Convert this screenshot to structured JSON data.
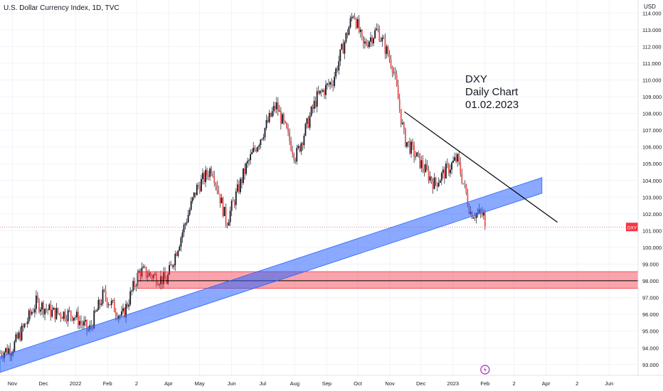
{
  "chart_data": {
    "type": "candlestick",
    "title": "U.S. Dollar Currency Index, 1D, TVC",
    "currency": "USD",
    "annotation": [
      "DXY",
      "Daily Chart",
      "01.02.2023"
    ],
    "y_ticks": [
      "114.000",
      "113.000",
      "112.000",
      "111.000",
      "110.000",
      "109.000",
      "108.000",
      "107.000",
      "106.000",
      "105.000",
      "104.000",
      "103.000",
      "102.000",
      "101.000",
      "100.000",
      "99.000",
      "98.000",
      "97.000",
      "96.000",
      "95.000",
      "94.000",
      "93.000"
    ],
    "x_ticks": [
      "Nov",
      "Dec",
      "2022",
      "Feb",
      "2",
      "Apr",
      "May",
      "Jun",
      "Jul",
      "Aug",
      "Sep",
      "Oct",
      "Nov",
      "Dec",
      "2023",
      "Feb",
      "2",
      "Apr",
      "2",
      "Jun"
    ],
    "ylim": [
      92.5,
      114.3
    ],
    "price_path": [
      {
        "date": "2021-10-20",
        "value": 93.7
      },
      {
        "date": "2021-11-01",
        "value": 94.0
      },
      {
        "date": "2021-11-12",
        "value": 95.2
      },
      {
        "date": "2021-11-24",
        "value": 96.7
      },
      {
        "date": "2021-12-10",
        "value": 96.1
      },
      {
        "date": "2021-12-30",
        "value": 96.0
      },
      {
        "date": "2022-01-14",
        "value": 95.0
      },
      {
        "date": "2022-01-28",
        "value": 97.2
      },
      {
        "date": "2022-02-15",
        "value": 95.8
      },
      {
        "date": "2022-03-04",
        "value": 98.6
      },
      {
        "date": "2022-03-30",
        "value": 98.0
      },
      {
        "date": "2022-04-28",
        "value": 103.5
      },
      {
        "date": "2022-05-13",
        "value": 104.8
      },
      {
        "date": "2022-05-27",
        "value": 101.5
      },
      {
        "date": "2022-06-15",
        "value": 104.8
      },
      {
        "date": "2022-07-14",
        "value": 108.5
      },
      {
        "date": "2022-08-02",
        "value": 105.4
      },
      {
        "date": "2022-08-22",
        "value": 108.9
      },
      {
        "date": "2022-09-07",
        "value": 110.0
      },
      {
        "date": "2022-09-27",
        "value": 114.1
      },
      {
        "date": "2022-10-06",
        "value": 112.0
      },
      {
        "date": "2022-10-20",
        "value": 113.0
      },
      {
        "date": "2022-11-04",
        "value": 110.8
      },
      {
        "date": "2022-11-15",
        "value": 106.5
      },
      {
        "date": "2022-12-01",
        "value": 105.0
      },
      {
        "date": "2022-12-14",
        "value": 103.8
      },
      {
        "date": "2023-01-05",
        "value": 105.3
      },
      {
        "date": "2023-01-18",
        "value": 102.1
      },
      {
        "date": "2023-01-31",
        "value": 101.9
      },
      {
        "date": "2023-02-01",
        "value": 101.217
      }
    ],
    "last_price": {
      "label": "DXY",
      "value": "101.217"
    },
    "support_zone": {
      "low": 97.55,
      "high": 98.55,
      "level_label": "98.009"
    },
    "trend_channel": {
      "start_date": "2021-10-20",
      "start_value": 93.0,
      "end_date": "2023-03-28",
      "end_value": 103.7
    },
    "trend_line": {
      "start_date": "2022-11-15",
      "start_value": 108.1,
      "end_date": "2023-04-12",
      "end_value": 101.5
    }
  }
}
